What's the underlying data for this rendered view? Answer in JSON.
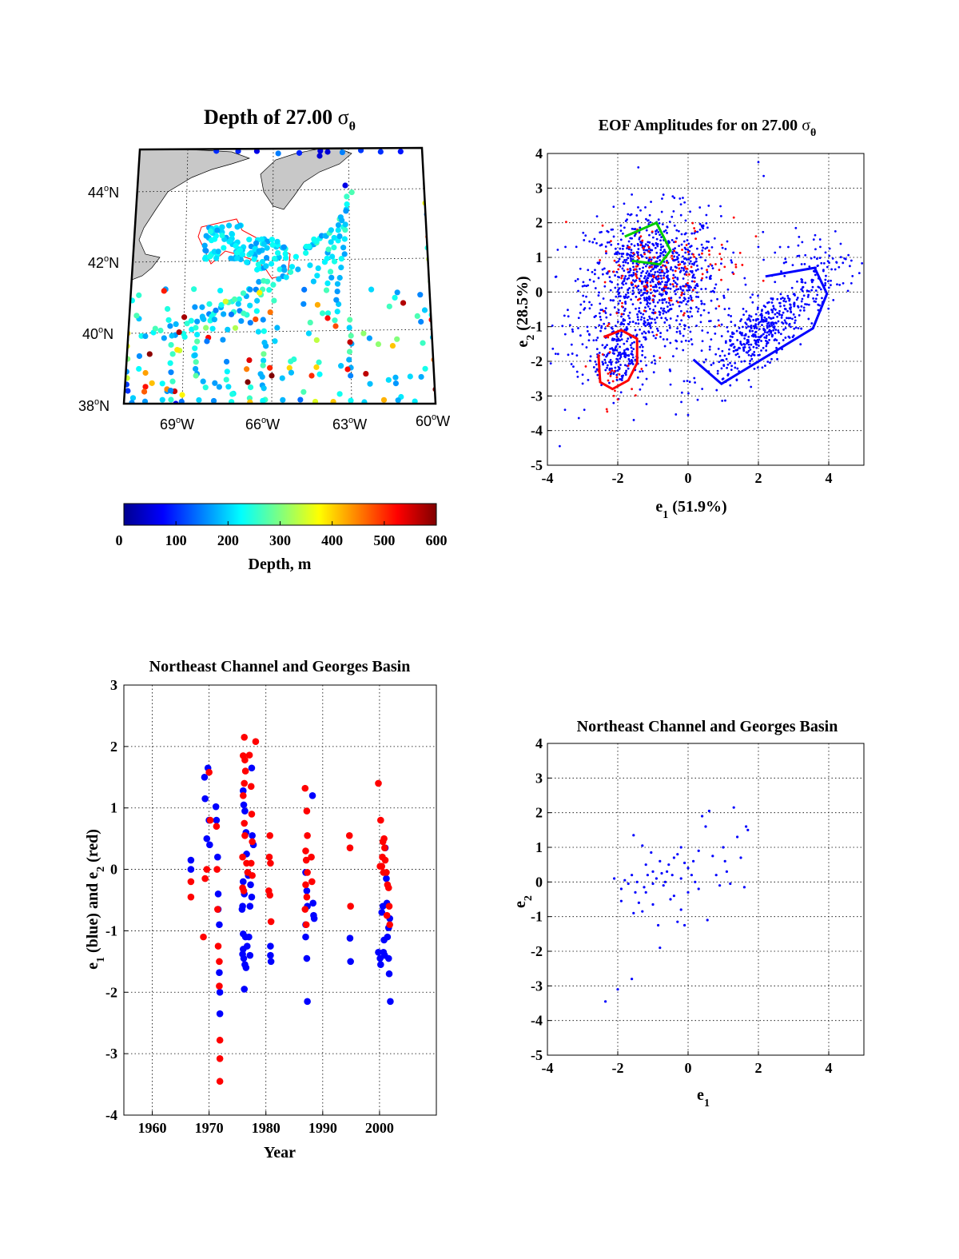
{
  "colors": {
    "blue": "#0000ff",
    "red": "#ff0000",
    "green": "#00cc00",
    "land": "#c8c8c8",
    "grid": "#000000"
  },
  "map": {
    "title_main": "Depth of 27.00 ",
    "title_sym": "σ",
    "title_sub": "θ",
    "lat_labels": [
      "44",
      "42",
      "40",
      "38"
    ],
    "lat_suffix": "N",
    "lon_labels": [
      "69",
      "66",
      "63",
      "60"
    ],
    "lon_suffix": "W",
    "degree": "o",
    "colorbar": {
      "label": "Depth, m",
      "ticks": [
        "0",
        "100",
        "200",
        "300",
        "400",
        "500",
        "600"
      ],
      "min": 0,
      "max": 600,
      "colormap": "jet"
    }
  },
  "chart_data": [
    {
      "id": "eof-amplitudes",
      "type": "scatter",
      "title_main": "EOF Amplitudes for on 27.00 ",
      "title_sym": "σ",
      "title_sub": "θ",
      "xlabel": "e",
      "xlabel_sub": "1",
      "xlabel_rest": " (51.9%)",
      "ylabel": "e",
      "ylabel_sub": "2",
      "ylabel_rest": " (28.5%)",
      "xlim": [
        -4,
        5
      ],
      "ylim": [
        -5,
        4
      ],
      "xticks": [
        "-4",
        "-2",
        "0",
        "2",
        "4"
      ],
      "yticks": [
        "-5",
        "-4",
        "-3",
        "-2",
        "-1",
        "0",
        "1",
        "2",
        "3",
        "4"
      ],
      "grid": true,
      "series_colors": [
        "#0000ff",
        "#ff0000"
      ],
      "approx_points": {
        "blue": 1700,
        "red": 170
      },
      "polygons": [
        {
          "color": "#00cc00",
          "points": [
            [
              -1.8,
              1.6
            ],
            [
              -0.9,
              2.0
            ],
            [
              -0.5,
              1.2
            ],
            [
              -0.8,
              0.8
            ],
            [
              -1.6,
              0.9
            ]
          ]
        },
        {
          "color": "#ff0000",
          "points": [
            [
              -2.55,
              -1.8
            ],
            [
              -2.5,
              -2.6
            ],
            [
              -2.15,
              -2.8
            ],
            [
              -1.7,
              -2.55
            ],
            [
              -1.45,
              -2.05
            ],
            [
              -1.45,
              -1.35
            ],
            [
              -1.9,
              -1.1
            ],
            [
              -2.4,
              -1.3
            ]
          ]
        },
        {
          "color": "#0000ff",
          "points": [
            [
              0.15,
              -1.95
            ],
            [
              0.95,
              -2.65
            ],
            [
              3.55,
              -1.05
            ],
            [
              3.95,
              -0.05
            ],
            [
              3.6,
              0.7
            ],
            [
              2.2,
              0.45
            ]
          ]
        }
      ]
    },
    {
      "id": "time-series",
      "type": "scatter",
      "title": "Northeast Channel and Georges Basin",
      "xlabel": "Year",
      "ylabel_parts": [
        "e",
        "1",
        " (blue) and e",
        "2",
        " (red)"
      ],
      "xlim": [
        1955,
        2010
      ],
      "ylim": [
        -4,
        3
      ],
      "xticks": [
        "1960",
        "1970",
        "1980",
        "1990",
        "2000"
      ],
      "yticks": [
        "-4",
        "-3",
        "-2",
        "-1",
        "0",
        "1",
        "2",
        "3"
      ],
      "grid": true,
      "series": [
        {
          "name": "e1",
          "color": "#0000ff",
          "points": [
            [
              1966.8,
              0.15
            ],
            [
              1966.8,
              0.0
            ],
            [
              1969.2,
              1.5
            ],
            [
              1969.3,
              1.15
            ],
            [
              1969.6,
              0.5
            ],
            [
              1969.8,
              1.65
            ],
            [
              1970.0,
              0.8
            ],
            [
              1970.1,
              0.4
            ],
            [
              1971.2,
              1.02
            ],
            [
              1971.3,
              0.8
            ],
            [
              1971.5,
              0.2
            ],
            [
              1971.6,
              -0.4
            ],
            [
              1971.6,
              -0.65
            ],
            [
              1971.8,
              -0.9
            ],
            [
              1971.8,
              -1.68
            ],
            [
              1971.9,
              -2.0
            ],
            [
              1971.9,
              -2.35
            ],
            [
              1976.0,
              1.28
            ],
            [
              1976.1,
              1.05
            ],
            [
              1976.3,
              0.95
            ],
            [
              1976.5,
              0.6
            ],
            [
              1976.6,
              0.25
            ],
            [
              1976.8,
              -0.05
            ],
            [
              1976.9,
              -0.1
            ],
            [
              1976.0,
              -0.2
            ],
            [
              1976.2,
              -0.4
            ],
            [
              1975.9,
              -0.6
            ],
            [
              1975.8,
              -0.65
            ],
            [
              1976.0,
              -1.05
            ],
            [
              1976.4,
              -1.1
            ],
            [
              1976.7,
              -1.25
            ],
            [
              1976.0,
              -1.3
            ],
            [
              1975.9,
              -1.38
            ],
            [
              1976.1,
              -1.45
            ],
            [
              1976.3,
              -1.55
            ],
            [
              1976.5,
              -1.6
            ],
            [
              1976.2,
              -1.95
            ],
            [
              1977.5,
              1.65
            ],
            [
              1977.6,
              0.55
            ],
            [
              1977.8,
              0.4
            ],
            [
              1977.3,
              -0.25
            ],
            [
              1977.5,
              -0.45
            ],
            [
              1977.2,
              -0.6
            ],
            [
              1977.0,
              -1.1
            ],
            [
              1977.2,
              -1.4
            ],
            [
              1980.8,
              -1.25
            ],
            [
              1980.8,
              -1.4
            ],
            [
              1980.9,
              -1.5
            ],
            [
              1987.0,
              -0.05
            ],
            [
              1987.2,
              -0.35
            ],
            [
              1987.3,
              -0.6
            ],
            [
              1987.0,
              -0.9
            ],
            [
              1987.0,
              -1.1
            ],
            [
              1987.2,
              -1.45
            ],
            [
              1987.3,
              -2.15
            ],
            [
              1988.2,
              1.2
            ],
            [
              1988.3,
              -0.55
            ],
            [
              1988.4,
              -0.75
            ],
            [
              1988.5,
              -0.8
            ],
            [
              1994.8,
              -1.12
            ],
            [
              1994.9,
              -1.5
            ],
            [
              1999.8,
              -1.35
            ],
            [
              2000.1,
              -1.45
            ],
            [
              2000.2,
              -1.55
            ],
            [
              2000.4,
              -0.7
            ],
            [
              2000.6,
              -0.6
            ],
            [
              2000.7,
              -1.35
            ],
            [
              2000.9,
              -1.4
            ],
            [
              2001.0,
              0.35
            ],
            [
              2001.2,
              -0.15
            ],
            [
              2001.3,
              -0.55
            ],
            [
              2001.4,
              -1.1
            ],
            [
              2001.6,
              -1.45
            ],
            [
              2001.7,
              -1.7
            ],
            [
              2001.9,
              -2.15
            ],
            [
              2001.6,
              -0.95
            ],
            [
              2001.8,
              -0.8
            ],
            [
              2000.8,
              -1.15
            ]
          ]
        },
        {
          "name": "e2",
          "color": "#ff0000",
          "points": [
            [
              1966.8,
              -0.2
            ],
            [
              1966.8,
              -0.45
            ],
            [
              1969.0,
              -1.1
            ],
            [
              1969.3,
              -0.15
            ],
            [
              1969.6,
              0.0
            ],
            [
              1970.0,
              1.58
            ],
            [
              1970.2,
              0.8
            ],
            [
              1971.3,
              0.7
            ],
            [
              1971.4,
              0.0
            ],
            [
              1971.5,
              -0.65
            ],
            [
              1971.6,
              -1.25
            ],
            [
              1971.8,
              -1.5
            ],
            [
              1971.8,
              -1.9
            ],
            [
              1971.9,
              -2.78
            ],
            [
              1971.9,
              -3.08
            ],
            [
              1971.9,
              -3.45
            ],
            [
              1976.2,
              2.15
            ],
            [
              1976.0,
              1.85
            ],
            [
              1976.3,
              1.78
            ],
            [
              1976.4,
              1.6
            ],
            [
              1976.2,
              1.4
            ],
            [
              1976.0,
              1.2
            ],
            [
              1976.2,
              0.75
            ],
            [
              1976.3,
              0.55
            ],
            [
              1975.9,
              0.2
            ],
            [
              1976.6,
              0.1
            ],
            [
              1976.8,
              -0.05
            ],
            [
              1975.9,
              -0.3
            ],
            [
              1976.1,
              -0.35
            ],
            [
              1977.1,
              1.86
            ],
            [
              1977.4,
              1.35
            ],
            [
              1977.5,
              0.9
            ],
            [
              1977.6,
              0.45
            ],
            [
              1977.4,
              0.1
            ],
            [
              1977.6,
              -0.1
            ],
            [
              1978.2,
              2.08
            ],
            [
              1980.7,
              0.55
            ],
            [
              1980.6,
              0.2
            ],
            [
              1980.8,
              0.1
            ],
            [
              1980.5,
              -0.35
            ],
            [
              1980.7,
              -0.42
            ],
            [
              1980.9,
              -0.85
            ],
            [
              1986.9,
              1.32
            ],
            [
              1987.2,
              0.95
            ],
            [
              1987.3,
              0.55
            ],
            [
              1987.0,
              0.3
            ],
            [
              1987.1,
              0.15
            ],
            [
              1987.3,
              -0.05
            ],
            [
              1987.0,
              -0.25
            ],
            [
              1987.2,
              -0.45
            ],
            [
              1986.9,
              -0.65
            ],
            [
              1987.1,
              -0.9
            ],
            [
              1988.0,
              0.2
            ],
            [
              1988.1,
              -0.2
            ],
            [
              1994.7,
              0.55
            ],
            [
              1994.8,
              0.35
            ],
            [
              1994.9,
              -0.6
            ],
            [
              1999.8,
              1.4
            ],
            [
              2000.2,
              0.8
            ],
            [
              2000.6,
              0.45
            ],
            [
              2000.8,
              0.5
            ],
            [
              2000.9,
              0.35
            ],
            [
              2000.1,
              0.05
            ],
            [
              2000.4,
              0.05
            ],
            [
              2000.7,
              -0.05
            ],
            [
              2001.0,
              0.15
            ],
            [
              2001.2,
              -0.05
            ],
            [
              2001.4,
              -0.25
            ],
            [
              2001.6,
              -0.3
            ],
            [
              2001.7,
              -0.6
            ],
            [
              2001.8,
              -0.9
            ],
            [
              2001.3,
              -0.75
            ],
            [
              2000.5,
              0.2
            ]
          ]
        }
      ]
    },
    {
      "id": "sub-scatter",
      "type": "scatter",
      "title": "Northeast Channel and Georges Basin",
      "xlabel": "e",
      "xlabel_sub": "1",
      "ylabel": "e",
      "ylabel_sub": "2",
      "xlim": [
        -4,
        5
      ],
      "ylim": [
        -5,
        4
      ],
      "xticks": [
        "-4",
        "-2",
        "0",
        "2",
        "4"
      ],
      "yticks": [
        "-5",
        "-4",
        "-3",
        "-2",
        "-1",
        "0",
        "1",
        "2",
        "3",
        "4"
      ],
      "grid": true,
      "series": [
        {
          "color": "#0000ff",
          "points": [
            [
              -2.35,
              -3.45
            ],
            [
              -2.0,
              -3.1
            ],
            [
              -1.6,
              -2.8
            ],
            [
              -0.8,
              -1.9
            ],
            [
              -1.8,
              0.05
            ],
            [
              -1.9,
              -0.2
            ],
            [
              -1.6,
              0.2
            ],
            [
              -1.5,
              -0.3
            ],
            [
              -1.4,
              -0.6
            ],
            [
              -1.2,
              0.5
            ],
            [
              -1.15,
              0.2
            ],
            [
              -1.0,
              0.3
            ],
            [
              -0.9,
              0.1
            ],
            [
              -0.8,
              0.6
            ],
            [
              -0.7,
              -0.1
            ],
            [
              -0.6,
              0.3
            ],
            [
              -0.55,
              0.5
            ],
            [
              -0.45,
              0.2
            ],
            [
              -0.4,
              -0.4
            ],
            [
              -0.3,
              0.8
            ],
            [
              -0.2,
              0.1
            ],
            [
              -0.1,
              0.55
            ],
            [
              0.0,
              0.4
            ],
            [
              0.1,
              0.2
            ],
            [
              0.2,
              0.0
            ],
            [
              0.3,
              0.9
            ],
            [
              0.4,
              1.9
            ],
            [
              0.5,
              1.6
            ],
            [
              0.6,
              2.05
            ],
            [
              0.8,
              0.2
            ],
            [
              0.9,
              -0.1
            ],
            [
              1.05,
              0.6
            ],
            [
              1.2,
              -0.05
            ],
            [
              1.3,
              2.15
            ],
            [
              1.4,
              1.3
            ],
            [
              1.6,
              -0.15
            ],
            [
              1.65,
              1.6
            ],
            [
              1.7,
              1.5
            ],
            [
              -1.55,
              1.35
            ],
            [
              -1.3,
              1.05
            ],
            [
              -1.3,
              -0.85
            ],
            [
              -1.7,
              -0.05
            ],
            [
              -1.9,
              -0.55
            ],
            [
              -2.1,
              0.1
            ],
            [
              -1.55,
              -0.9
            ],
            [
              -1.2,
              -0.3
            ],
            [
              -1.0,
              -0.65
            ],
            [
              -0.85,
              -1.25
            ],
            [
              -0.65,
              0.0
            ],
            [
              -0.5,
              -0.5
            ],
            [
              -0.3,
              -1.15
            ],
            [
              -0.2,
              -0.8
            ],
            [
              0.0,
              -0.3
            ],
            [
              0.15,
              0.6
            ],
            [
              0.3,
              -0.2
            ],
            [
              0.7,
              0.75
            ],
            [
              1.0,
              1.0
            ],
            [
              1.1,
              0.3
            ],
            [
              1.5,
              0.7
            ],
            [
              -1.0,
              -0.05
            ],
            [
              -0.75,
              0.25
            ],
            [
              -1.25,
              -0.15
            ],
            [
              -0.2,
              1.0
            ],
            [
              -0.4,
              0.7
            ],
            [
              0.55,
              -1.1
            ],
            [
              -0.1,
              -1.25
            ],
            [
              -1.45,
              0.0
            ],
            [
              -1.05,
              0.85
            ]
          ]
        }
      ]
    }
  ]
}
